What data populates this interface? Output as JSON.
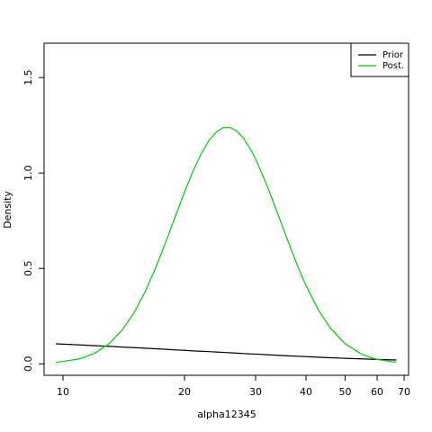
{
  "chart_data": {
    "type": "line",
    "x_label": "alpha12345",
    "y_label": "Density",
    "x": [
      9.6,
      11,
      12,
      13,
      14,
      15,
      16,
      17,
      18,
      19,
      20,
      21,
      22,
      23,
      24,
      25,
      26,
      27,
      28,
      29,
      30,
      32,
      34,
      36,
      38,
      40,
      43,
      46,
      50,
      55,
      60,
      67
    ],
    "series": [
      {
        "name": "Prior",
        "color": "#000000",
        "values": [
          0.105,
          0.099,
          0.095,
          0.092,
          0.088,
          0.085,
          0.082,
          0.079,
          0.076,
          0.073,
          0.071,
          0.068,
          0.066,
          0.064,
          0.062,
          0.06,
          0.058,
          0.056,
          0.054,
          0.052,
          0.051,
          0.048,
          0.045,
          0.042,
          0.04,
          0.038,
          0.035,
          0.032,
          0.029,
          0.026,
          0.023,
          0.02
        ]
      },
      {
        "name": "Post.",
        "color": "#00cd00",
        "values": [
          0.007,
          0.026,
          0.056,
          0.105,
          0.175,
          0.268,
          0.38,
          0.507,
          0.641,
          0.774,
          0.899,
          1.01,
          1.101,
          1.17,
          1.215,
          1.238,
          1.238,
          1.218,
          1.182,
          1.133,
          1.074,
          0.936,
          0.79,
          0.649,
          0.52,
          0.41,
          0.28,
          0.186,
          0.105,
          0.05,
          0.023,
          0.008
        ]
      }
    ],
    "xscale": "log",
    "xlim": [
      8.98,
      71.8
    ],
    "ylim": [
      -0.06,
      1.68
    ],
    "xticks": [
      10,
      20,
      30,
      40,
      50,
      60,
      70
    ],
    "yticks": [
      {
        "value": 0,
        "label": "0.0"
      },
      {
        "value": 0.5,
        "label": "0.5"
      },
      {
        "value": 1,
        "label": "1.0"
      },
      {
        "value": 1.5,
        "label": "1.5"
      }
    ],
    "grid": false,
    "legend": "topright"
  }
}
